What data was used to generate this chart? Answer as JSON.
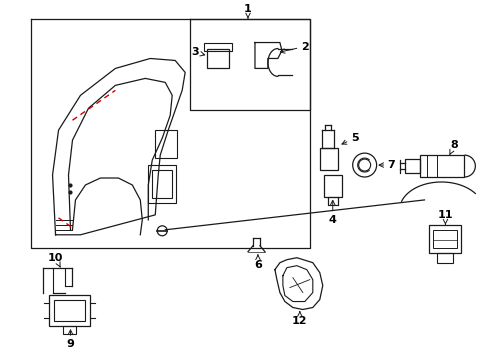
{
  "bg_color": "#ffffff",
  "line_color": "#1a1a1a",
  "red_color": "#cc0000",
  "label_color": "#000000",
  "fig_width": 4.89,
  "fig_height": 3.6,
  "dpi": 100
}
